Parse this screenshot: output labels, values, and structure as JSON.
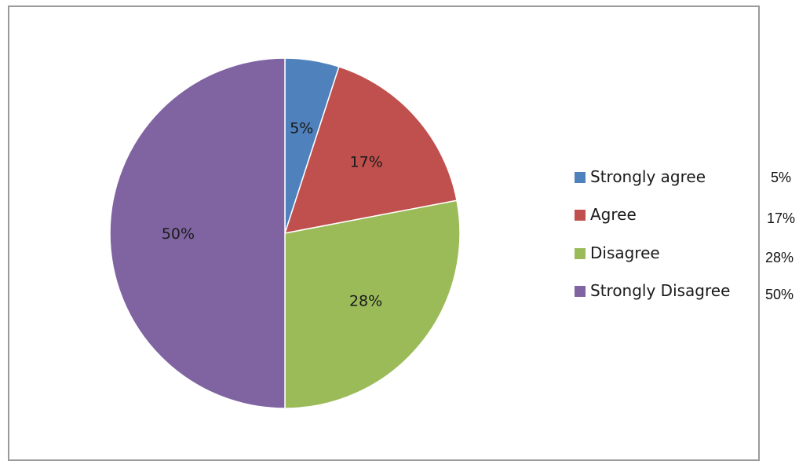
{
  "chart_data": {
    "type": "pie",
    "categories": [
      "Strongly agree",
      "Agree",
      "Disagree",
      "Strongly Disagree"
    ],
    "values": [
      5,
      17,
      28,
      50
    ],
    "data_labels": [
      "5%",
      "17%",
      "28%",
      "50%"
    ],
    "colors": [
      "#4f81bd",
      "#c0504d",
      "#9bbb59",
      "#8064a2"
    ],
    "legend_position": "right"
  },
  "side_values": [
    "5%",
    "17%",
    "28%",
    "50%"
  ]
}
